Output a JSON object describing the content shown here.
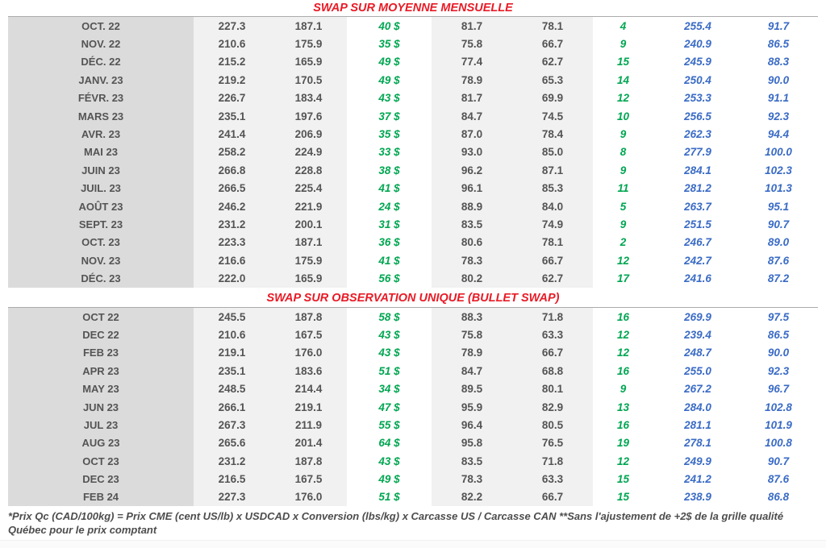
{
  "colors": {
    "red": "#e81b26",
    "dark": "#545454",
    "green": "#00a651",
    "blue": "#3a6bc5",
    "month_bg": "#dbdbdb",
    "band_bg": "#f1f1f1",
    "rule": "#ababab"
  },
  "sections": [
    {
      "title": "SWAP SUR MOYENNE MENSUELLE",
      "rows": [
        [
          "OCT. 22",
          "227.3",
          "187.1",
          "40 $",
          "81.7",
          "78.1",
          "4",
          "255.4",
          "91.7"
        ],
        [
          "NOV. 22",
          "210.6",
          "175.9",
          "35 $",
          "75.8",
          "66.7",
          "9",
          "240.9",
          "86.5"
        ],
        [
          "DÉC. 22",
          "215.2",
          "165.9",
          "49 $",
          "77.4",
          "62.7",
          "15",
          "245.9",
          "88.3"
        ],
        [
          "JANV. 23",
          "219.2",
          "170.5",
          "49 $",
          "78.9",
          "65.3",
          "14",
          "250.4",
          "90.0"
        ],
        [
          "FÉVR. 23",
          "226.7",
          "183.4",
          "43 $",
          "81.7",
          "69.9",
          "12",
          "253.3",
          "91.1"
        ],
        [
          "MARS 23",
          "235.1",
          "197.6",
          "37 $",
          "84.7",
          "74.5",
          "10",
          "256.5",
          "92.3"
        ],
        [
          "AVR. 23",
          "241.4",
          "206.9",
          "35 $",
          "87.0",
          "78.4",
          "9",
          "262.3",
          "94.4"
        ],
        [
          "MAI 23",
          "258.2",
          "224.9",
          "33 $",
          "93.0",
          "85.0",
          "8",
          "277.9",
          "100.0"
        ],
        [
          "JUIN 23",
          "266.8",
          "228.8",
          "38 $",
          "96.2",
          "87.1",
          "9",
          "284.1",
          "102.3"
        ],
        [
          "JUIL. 23",
          "266.5",
          "225.4",
          "41 $",
          "96.1",
          "85.3",
          "11",
          "281.2",
          "101.3"
        ],
        [
          "AOÛT 23",
          "246.2",
          "221.9",
          "24 $",
          "88.9",
          "84.0",
          "5",
          "263.7",
          "95.1"
        ],
        [
          "SEPT. 23",
          "231.2",
          "200.1",
          "31 $",
          "83.5",
          "74.9",
          "9",
          "251.5",
          "90.7"
        ],
        [
          "OCT. 23",
          "223.3",
          "187.1",
          "36 $",
          "80.6",
          "78.1",
          "2",
          "246.7",
          "89.0"
        ],
        [
          "NOV. 23",
          "216.6",
          "175.9",
          "41 $",
          "78.3",
          "66.7",
          "12",
          "242.7",
          "87.6"
        ],
        [
          "DÉC. 23",
          "222.0",
          "165.9",
          "56 $",
          "80.2",
          "62.7",
          "17",
          "241.6",
          "87.2"
        ]
      ]
    },
    {
      "title": "SWAP SUR OBSERVATION UNIQUE (BULLET SWAP)",
      "rows": [
        [
          "OCT 22",
          "245.5",
          "187.8",
          "58 $",
          "88.3",
          "71.8",
          "16",
          "269.9",
          "97.5"
        ],
        [
          "DEC 22",
          "210.6",
          "167.5",
          "43 $",
          "75.8",
          "63.3",
          "12",
          "239.4",
          "86.5"
        ],
        [
          "FEB 23",
          "219.1",
          "176.0",
          "43 $",
          "78.9",
          "66.7",
          "12",
          "248.7",
          "90.0"
        ],
        [
          "APR 23",
          "235.1",
          "183.6",
          "51 $",
          "84.7",
          "68.8",
          "16",
          "255.0",
          "92.3"
        ],
        [
          "MAY 23",
          "248.5",
          "214.4",
          "34 $",
          "89.5",
          "80.1",
          "9",
          "267.2",
          "96.7"
        ],
        [
          "JUN 23",
          "266.1",
          "219.1",
          "47 $",
          "95.9",
          "82.9",
          "13",
          "284.0",
          "102.8"
        ],
        [
          "JUL 23",
          "267.3",
          "211.9",
          "55 $",
          "96.4",
          "80.5",
          "16",
          "281.1",
          "101.9"
        ],
        [
          "AUG 23",
          "265.6",
          "201.4",
          "64 $",
          "95.8",
          "76.5",
          "19",
          "278.1",
          "100.8"
        ],
        [
          "OCT 23",
          "231.2",
          "187.8",
          "43 $",
          "83.5",
          "71.8",
          "12",
          "249.9",
          "90.7"
        ],
        [
          "DEC 23",
          "216.5",
          "167.5",
          "49 $",
          "78.3",
          "63.3",
          "15",
          "241.2",
          "87.6"
        ],
        [
          "FEB 24",
          "227.3",
          "176.0",
          "51 $",
          "82.2",
          "66.7",
          "15",
          "238.9",
          "86.8"
        ]
      ]
    }
  ],
  "footnote": {
    "line1": "*Prix Qc (CAD/100kg) = Prix CME (cent US/lb) x USDCAD x Conversion (lbs/kg) x Carcasse US / Carcasse CAN **Sans l'ajustement de +2$ de la grille qualité",
    "line2": "Québec pour le prix comptant"
  }
}
